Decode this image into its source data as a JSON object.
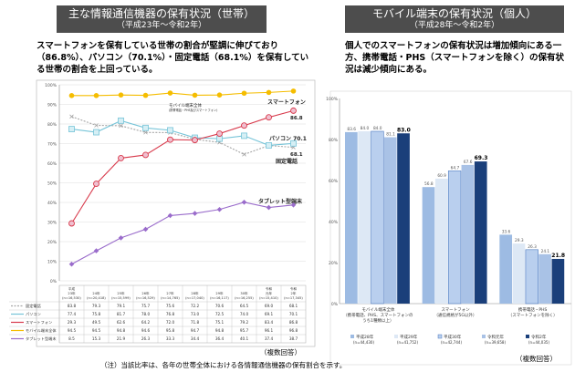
{
  "left": {
    "title": "主な情報通信機器の保有状況（世帯）",
    "subtitle": "（平成23年～令和2年）",
    "lead": "スマートフォンを保有している世帯の割合が堅調に伸びており（86.8%）、パソコン（70.1%）・固定電話（68.1%）を保有している世帯の割合を上回っている。",
    "multi_answer": "（複数回答）",
    "footnote": "（注）当該比率は、各年の世帯全体における各情報通信機器の保有割合を示す。",
    "annotations": {
      "mobile": "モバイル端末全体",
      "mobile_sub": "(携帯電話・PHS及びスマートフォン)",
      "smartphone": "スマートフォン",
      "smartphone_val": "86.8",
      "pc": "パソコン 70.1",
      "landline_val": "68.1",
      "landline": "固定電話",
      "tablet": "タブレット型端末"
    }
  },
  "right": {
    "title": "モバイル端末の保有状況（個人）",
    "subtitle": "（平成28年～令和2年）",
    "lead": "個人でのスマートフォンの保有状況は増加傾向にある一方、携帯電話・PHS（スマートフォンを除く）の保有状況は減少傾向にある。",
    "multi_answer": "（複数回答）"
  },
  "chart_data": [
    {
      "type": "line",
      "ylim": [
        0,
        100
      ],
      "yticks": [
        "0%",
        "10%",
        "20%",
        "30%",
        "40%",
        "50%",
        "60%",
        "70%",
        "80%",
        "90%",
        "100%"
      ],
      "grid": true,
      "categories": [
        [
          "平成",
          "23年",
          "(n=16,530)"
        ],
        [
          "",
          "24年",
          "(n=20,418)"
        ],
        [
          "",
          "25年",
          "(n=15,599)"
        ],
        [
          "",
          "26年",
          "(n=16,529)"
        ],
        [
          "",
          "27年",
          "(n=14,765)"
        ],
        [
          "",
          "28年",
          "(n=17,040)"
        ],
        [
          "",
          "29年",
          "(n=16,117)"
        ],
        [
          "",
          "30年",
          "(n=16,255)"
        ],
        [
          "令和",
          "元年",
          "(n=15,410)"
        ],
        [
          "令和",
          "2年",
          "(n=17,345)"
        ]
      ],
      "series": [
        {
          "name": "固定電話",
          "color": "#a6a6a6",
          "marker": "x",
          "dash": true,
          "values": [
            83.8,
            79.3,
            79.1,
            75.7,
            75.6,
            72.2,
            70.6,
            64.5,
            69.0,
            68.1
          ]
        },
        {
          "name": "パソコン",
          "color": "#76c4d8",
          "marker": "square",
          "values": [
            77.4,
            75.8,
            81.7,
            78.0,
            76.8,
            73.0,
            72.5,
            74.0,
            69.1,
            70.1
          ]
        },
        {
          "name": "スマートフォン",
          "color": "#d83a4c",
          "marker": "circle",
          "values": [
            29.3,
            49.5,
            62.6,
            64.2,
            72.0,
            71.8,
            75.1,
            79.2,
            83.4,
            86.8
          ]
        },
        {
          "name": "モバイル端末全体",
          "color": "#f5bd00",
          "marker": "dot",
          "values": [
            94.5,
            94.5,
            94.8,
            94.6,
            95.8,
            94.7,
            94.8,
            95.7,
            96.1,
            96.8
          ]
        },
        {
          "name": "タブレット型端末",
          "color": "#9a6ccb",
          "marker": "diamond",
          "values": [
            8.5,
            15.3,
            21.9,
            26.3,
            33.3,
            34.4,
            36.4,
            40.1,
            37.4,
            38.7
          ]
        }
      ]
    },
    {
      "type": "bar",
      "ylim": [
        0,
        100
      ],
      "yticks": [
        "0%",
        "20%",
        "40%",
        "60%",
        "80%",
        "100%"
      ],
      "categories": [
        [
          "モバイル端末全体",
          "（携帯電話、PHS、スマートフォンの",
          "うち1種類以上）"
        ],
        [
          "スマートフォン",
          "（通信規格が5G以外）"
        ],
        [
          "携帯電話・PHS",
          "（スマートフォンを除く）"
        ]
      ],
      "series": [
        {
          "name": "平成28年",
          "n": "(n=44,430)",
          "color": "#9dbbe3",
          "values": [
            83.6,
            56.8,
            33.6
          ]
        },
        {
          "name": "平成29年",
          "n": "(n=41,752)",
          "color": "#dde8f5",
          "values": [
            84.0,
            60.9,
            29.3
          ]
        },
        {
          "name": "平成30年",
          "n": "(n=42,744)",
          "color": "#b9cfee",
          "values": [
            84.0,
            64.7,
            26.3
          ]
        },
        {
          "name": "令和元年",
          "n": "(n=39,658)",
          "color": "#a9c2e6",
          "values": [
            81.1,
            67.6,
            24.1
          ]
        },
        {
          "name": "令和2年",
          "n": "(n=44,035)",
          "color": "#1a3f7a",
          "values": [
            83.0,
            69.3,
            21.8
          ]
        }
      ]
    }
  ]
}
